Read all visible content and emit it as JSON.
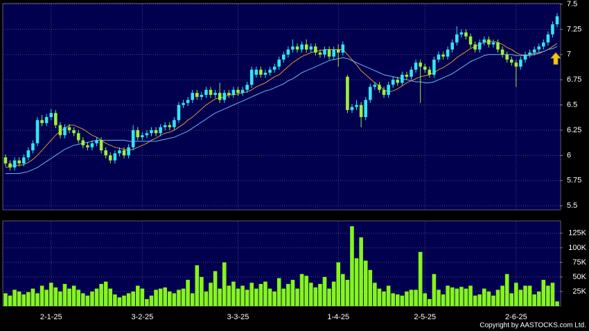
{
  "chart_data": [
    {
      "type": "candlestick",
      "open": [
        5.98,
        5.92,
        5.88,
        5.95,
        5.92,
        5.98,
        6.05,
        6.12,
        6.35,
        6.32,
        6.38,
        6.42,
        6.3,
        6.2,
        6.28,
        6.25,
        6.22,
        6.15,
        6.1,
        6.08,
        6.12,
        6.15,
        6.05,
        6.0,
        5.95,
        6.02,
        6.05,
        6.0,
        6.08,
        6.25,
        6.18,
        6.2,
        6.22,
        6.25,
        6.22,
        6.28,
        6.3,
        6.28,
        6.35,
        6.5,
        6.52,
        6.55,
        6.62,
        6.58,
        6.6,
        6.65,
        6.6,
        6.62,
        6.55,
        6.62,
        6.6,
        6.65,
        6.62,
        6.65,
        6.7,
        6.8,
        6.85,
        6.8,
        6.82,
        6.85,
        6.88,
        6.95,
        7.0,
        7.05,
        7.08,
        7.05,
        7.1,
        7.05,
        7.08,
        7.02,
        7.0,
        7.05,
        6.98,
        7.05,
        7.02,
        6.78,
        6.45,
        6.48,
        6.5,
        6.38,
        6.55,
        6.68,
        6.7,
        6.65,
        6.6,
        6.7,
        6.75,
        6.72,
        6.8,
        6.78,
        6.85,
        6.92,
        6.88,
        6.85,
        6.8,
        6.95,
        7.0,
        6.98,
        7.05,
        7.12,
        7.2,
        7.22,
        7.18,
        7.1,
        7.05,
        7.12,
        7.15,
        7.1,
        7.12,
        7.05,
        7.0,
        6.95,
        6.92,
        6.88,
        6.95,
        7.0,
        7.02,
        7.05,
        7.08,
        7.12,
        7.2,
        7.3
      ],
      "high": [
        6.01,
        5.95,
        5.98,
        5.98,
        6.01,
        6.08,
        6.15,
        6.38,
        6.4,
        6.41,
        6.46,
        6.45,
        6.33,
        6.31,
        6.31,
        6.28,
        6.25,
        6.18,
        6.13,
        6.15,
        6.18,
        6.18,
        6.08,
        6.03,
        6.05,
        6.08,
        6.08,
        6.11,
        6.3,
        6.28,
        6.23,
        6.25,
        6.28,
        6.28,
        6.31,
        6.33,
        6.33,
        6.38,
        6.53,
        6.55,
        6.58,
        6.65,
        6.65,
        6.63,
        6.68,
        6.68,
        6.65,
        6.72,
        6.65,
        6.65,
        6.68,
        6.68,
        6.68,
        6.73,
        6.88,
        6.88,
        6.88,
        6.85,
        6.88,
        6.91,
        6.98,
        7.03,
        7.08,
        7.15,
        7.11,
        7.13,
        7.15,
        7.11,
        7.11,
        7.05,
        7.08,
        7.08,
        7.08,
        7.1,
        7.13,
        6.8,
        6.51,
        6.55,
        6.53,
        6.58,
        6.71,
        6.73,
        6.73,
        6.68,
        6.73,
        6.78,
        6.78,
        6.83,
        6.83,
        6.88,
        6.95,
        6.95,
        6.91,
        6.88,
        6.98,
        7.03,
        7.03,
        7.08,
        7.15,
        7.28,
        7.25,
        7.25,
        7.21,
        7.13,
        7.15,
        7.18,
        7.18,
        7.15,
        7.15,
        7.08,
        7.03,
        6.98,
        6.95,
        6.98,
        7.03,
        7.05,
        7.08,
        7.11,
        7.15,
        7.23,
        7.33,
        7.41
      ],
      "low": [
        5.89,
        5.85,
        5.85,
        5.89,
        5.89,
        5.95,
        6.02,
        6.09,
        6.29,
        6.29,
        6.35,
        6.27,
        6.17,
        6.17,
        6.22,
        6.19,
        6.12,
        6.07,
        6.05,
        6.05,
        6.09,
        6.02,
        5.97,
        5.92,
        5.92,
        5.99,
        5.97,
        5.97,
        6.05,
        6.15,
        6.15,
        6.17,
        6.19,
        6.19,
        6.19,
        6.25,
        6.25,
        6.25,
        6.32,
        6.47,
        6.49,
        6.52,
        6.55,
        6.55,
        6.57,
        6.57,
        6.57,
        6.52,
        6.52,
        6.57,
        6.57,
        6.59,
        6.59,
        6.62,
        6.67,
        6.77,
        6.77,
        6.77,
        6.79,
        6.82,
        6.85,
        6.92,
        6.97,
        7.02,
        7.02,
        7.02,
        7.02,
        7.02,
        6.99,
        6.97,
        6.97,
        6.95,
        6.95,
        6.88,
        6.99,
        6.42,
        6.42,
        6.45,
        6.28,
        6.35,
        6.52,
        6.65,
        6.62,
        6.57,
        6.57,
        6.67,
        6.69,
        6.69,
        6.75,
        6.75,
        6.82,
        6.52,
        6.82,
        6.77,
        6.77,
        6.92,
        6.95,
        6.95,
        7.02,
        7.09,
        7.17,
        7.15,
        7.07,
        7.02,
        7.02,
        7.09,
        7.07,
        7.07,
        7.02,
        6.97,
        6.92,
        6.89,
        6.68,
        6.85,
        6.92,
        6.97,
        6.99,
        7.02,
        7.05,
        7.09,
        7.17,
        7.27
      ],
      "close": [
        5.92,
        5.88,
        5.95,
        5.92,
        5.98,
        6.05,
        6.12,
        6.35,
        6.32,
        6.38,
        6.42,
        6.3,
        6.2,
        6.28,
        6.25,
        6.22,
        6.15,
        6.1,
        6.08,
        6.12,
        6.15,
        6.05,
        6.0,
        5.95,
        6.02,
        6.05,
        6.0,
        6.08,
        6.25,
        6.18,
        6.2,
        6.22,
        6.25,
        6.22,
        6.28,
        6.3,
        6.28,
        6.35,
        6.5,
        6.52,
        6.55,
        6.62,
        6.58,
        6.6,
        6.65,
        6.6,
        6.62,
        6.55,
        6.62,
        6.6,
        6.65,
        6.62,
        6.65,
        6.7,
        6.85,
        6.85,
        6.8,
        6.82,
        6.85,
        6.88,
        6.95,
        7.0,
        7.05,
        7.08,
        7.05,
        7.1,
        7.05,
        7.08,
        7.02,
        7.0,
        7.05,
        6.98,
        7.05,
        7.02,
        7.1,
        6.45,
        6.48,
        6.5,
        6.38,
        6.55,
        6.68,
        6.7,
        6.65,
        6.6,
        6.7,
        6.75,
        6.72,
        6.8,
        6.78,
        6.85,
        6.92,
        6.88,
        6.85,
        6.8,
        6.95,
        7.0,
        6.98,
        7.05,
        7.12,
        7.2,
        7.22,
        7.18,
        7.1,
        7.05,
        7.12,
        7.15,
        7.1,
        7.12,
        7.05,
        7.0,
        6.95,
        6.92,
        6.88,
        6.95,
        7.0,
        7.02,
        7.05,
        7.08,
        7.12,
        7.2,
        7.3,
        7.38
      ],
      "up_color": "#33e4f4",
      "down_color": "#9eee3c",
      "series": [
        {
          "color": "#e8922e",
          "values": [
            5.88,
            5.89,
            5.9,
            5.9,
            5.91,
            5.93,
            5.96,
            6.0,
            6.05,
            6.1,
            6.15,
            6.2,
            6.24,
            6.27,
            6.3,
            6.3,
            6.28,
            6.26,
            6.23,
            6.2,
            6.18,
            6.15,
            6.12,
            6.1,
            6.08,
            6.07,
            6.06,
            6.05,
            6.06,
            6.08,
            6.1,
            6.12,
            6.15,
            6.17,
            6.2,
            6.22,
            6.23,
            6.25,
            6.28,
            6.31,
            6.35,
            6.38,
            6.42,
            6.46,
            6.5,
            6.53,
            6.56,
            6.57,
            6.58,
            6.6,
            6.6,
            6.61,
            6.62,
            6.63,
            6.65,
            6.68,
            6.7,
            6.72,
            6.75,
            6.78,
            6.8,
            6.84,
            6.88,
            6.92,
            6.95,
            6.98,
            7.0,
            7.02,
            7.03,
            7.04,
            7.05,
            7.05,
            7.05,
            7.05,
            7.05,
            7.0,
            6.95,
            6.9,
            6.84,
            6.8,
            6.76,
            6.72,
            6.69,
            6.65,
            6.63,
            6.64,
            6.66,
            6.69,
            6.72,
            6.74,
            6.76,
            6.78,
            6.79,
            6.8,
            6.82,
            6.85,
            6.87,
            6.9,
            6.93,
            6.97,
            7.0,
            7.03,
            7.06,
            7.08,
            7.1,
            7.12,
            7.13,
            7.13,
            7.12,
            7.1,
            7.07,
            7.05,
            7.02,
            7.0,
            6.99,
            6.99,
            7.0,
            7.01,
            7.03,
            7.05,
            7.08,
            7.11
          ]
        },
        {
          "color": "#6db8f2",
          "values": [
            5.82,
            5.82,
            5.82,
            5.82,
            5.83,
            5.84,
            5.86,
            5.88,
            5.91,
            5.94,
            5.97,
            6.0,
            6.03,
            6.06,
            6.08,
            6.1,
            6.11,
            6.12,
            6.13,
            6.14,
            6.15,
            6.15,
            6.15,
            6.15,
            6.15,
            6.15,
            6.15,
            6.14,
            6.14,
            6.14,
            6.14,
            6.14,
            6.14,
            6.14,
            6.15,
            6.16,
            6.17,
            6.18,
            6.2,
            6.22,
            6.24,
            6.27,
            6.3,
            6.33,
            6.36,
            6.39,
            6.42,
            6.44,
            6.46,
            6.48,
            6.5,
            6.52,
            6.54,
            6.56,
            6.58,
            6.6,
            6.62,
            6.64,
            6.65,
            6.67,
            6.69,
            6.71,
            6.74,
            6.76,
            6.79,
            6.82,
            6.84,
            6.86,
            6.88,
            6.9,
            6.92,
            6.94,
            6.95,
            6.96,
            6.97,
            6.96,
            6.94,
            6.92,
            6.9,
            6.88,
            6.86,
            6.84,
            6.82,
            6.8,
            6.79,
            6.78,
            6.77,
            6.76,
            6.75,
            6.74,
            6.73,
            6.73,
            6.72,
            6.72,
            6.73,
            6.75,
            6.77,
            6.79,
            6.81,
            6.84,
            6.87,
            6.9,
            6.93,
            6.95,
            6.97,
            6.99,
            7.0,
            7.0,
            7.0,
            7.0,
            7.0,
            7.0,
            6.99,
            6.99,
            6.99,
            7.0,
            7.01,
            7.02,
            7.03,
            7.05,
            7.06,
            7.08
          ]
        }
      ],
      "xlim": [
        -0.45,
        121.6
      ],
      "ylim": [
        5.46,
        7.5
      ],
      "yticks": [
        5.5,
        5.75,
        6,
        6.25,
        6.5,
        6.75,
        7,
        7.25,
        7.5
      ],
      "grid": true
    },
    {
      "type": "bar",
      "values": [
        22000,
        18000,
        28000,
        25000,
        20000,
        24000,
        30000,
        22000,
        35000,
        28000,
        40000,
        32000,
        25000,
        38000,
        30000,
        35000,
        28000,
        22000,
        18000,
        25000,
        30000,
        38000,
        42000,
        30000,
        20000,
        15000,
        18000,
        22000,
        25000,
        35000,
        30000,
        12000,
        18000,
        28000,
        30000,
        32000,
        25000,
        22000,
        28000,
        30000,
        45000,
        22000,
        70000,
        50000,
        25000,
        40000,
        60000,
        30000,
        75000,
        35000,
        42000,
        30000,
        35000,
        28000,
        40000,
        30000,
        38000,
        42000,
        30000,
        25000,
        48000,
        30000,
        38000,
        45000,
        30000,
        55000,
        52000,
        40000,
        32000,
        38000,
        50000,
        30000,
        42000,
        75000,
        55000,
        45000,
        137000,
        82000,
        118000,
        78000,
        62000,
        40000,
        30000,
        25000,
        35000,
        22000,
        20000,
        18000,
        25000,
        28000,
        28000,
        93000,
        22000,
        12000,
        55000,
        28000,
        20000,
        35000,
        32000,
        30000,
        33000,
        30000,
        35000,
        18000,
        20000,
        30000,
        25000,
        18000,
        28000,
        35000,
        55000,
        22000,
        40000,
        28000,
        35000,
        35000,
        20000,
        25000,
        45000,
        35000,
        40000,
        8000
      ],
      "color": "#86f51c",
      "xlim": [
        -0.45,
        121.6
      ],
      "xticks": [
        {
          "value": 10,
          "label": "2-1-25"
        },
        {
          "value": 30,
          "label": "3-2-25"
        },
        {
          "value": 51,
          "label": "3-3-25"
        },
        {
          "value": 73,
          "label": "1-4-25"
        },
        {
          "value": 92,
          "label": "2-5-25"
        },
        {
          "value": 112,
          "label": "2-6-25"
        }
      ],
      "ylim": [
        0,
        145000
      ],
      "yticks": [
        {
          "value": 25000,
          "label": "25K"
        },
        {
          "value": 50000,
          "label": "50K"
        },
        {
          "value": 75000,
          "label": "75K"
        },
        {
          "value": 100000,
          "label": "100K"
        },
        {
          "value": 125000,
          "label": "125K"
        }
      ],
      "grid": true
    }
  ],
  "copyright": "Copyright by AASTOCKS.com Ltd."
}
